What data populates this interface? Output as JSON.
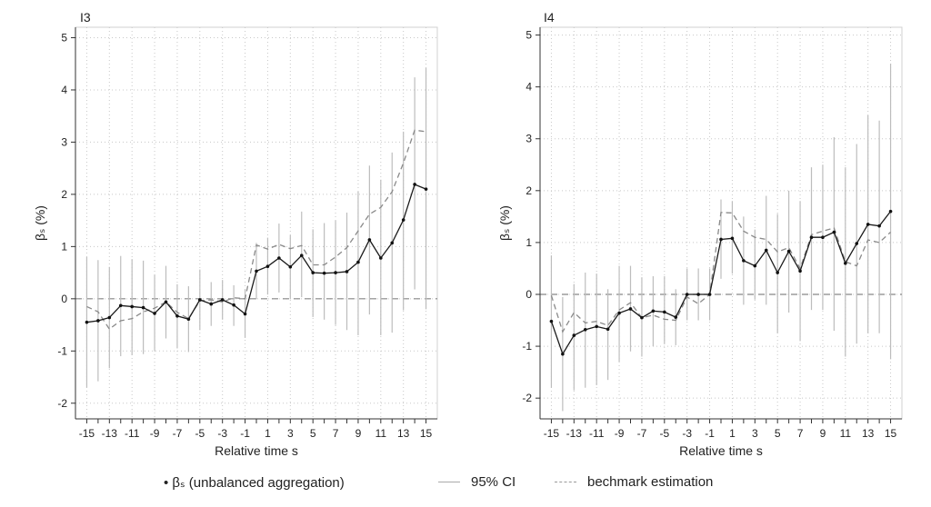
{
  "chart_data": [
    {
      "type": "line",
      "panel_label": "I3",
      "xlabel": "Relative time s",
      "ylabel": "βₛ (%)",
      "ylim": [
        -2.3,
        5.2
      ],
      "yticks": [
        -2,
        -1,
        0,
        1,
        2,
        3,
        4,
        5
      ],
      "xlim": [
        -16,
        16
      ],
      "xticks": [
        -15,
        -13,
        -11,
        -9,
        -7,
        -5,
        -3,
        -1,
        1,
        3,
        5,
        7,
        9,
        11,
        13,
        15
      ],
      "grid": true,
      "zero_line": true,
      "x": [
        -15,
        -14,
        -13,
        -12,
        -11,
        -10,
        -9,
        -8,
        -7,
        -6,
        -5,
        -4,
        -3,
        -2,
        -1,
        0,
        1,
        2,
        3,
        4,
        5,
        6,
        7,
        8,
        9,
        10,
        11,
        12,
        13,
        14,
        15
      ],
      "series": [
        {
          "name": "βₛ (unbalanced aggregation)",
          "values": [
            -0.45,
            -0.42,
            -0.36,
            -0.13,
            -0.15,
            -0.17,
            -0.28,
            -0.06,
            -0.33,
            -0.39,
            -0.02,
            -0.1,
            -0.02,
            -0.12,
            -0.29,
            0.53,
            0.62,
            0.78,
            0.61,
            0.83,
            0.5,
            0.49,
            0.5,
            0.52,
            0.7,
            1.13,
            0.78,
            1.07,
            1.51,
            2.19,
            2.1
          ]
        },
        {
          "name": "bechmark estimation",
          "values": [
            -0.15,
            -0.25,
            -0.58,
            -0.42,
            -0.38,
            -0.25,
            -0.18,
            -0.06,
            -0.26,
            -0.38,
            -0.04,
            -0.02,
            -0.06,
            0.02,
            0.0,
            1.03,
            0.95,
            1.04,
            0.96,
            1.02,
            0.65,
            0.65,
            0.8,
            0.98,
            1.3,
            1.62,
            1.75,
            2.05,
            2.6,
            3.23,
            3.2
          ]
        },
        {
          "name": "95% CI",
          "lower": [
            -1.7,
            -1.58,
            -1.33,
            -1.1,
            -1.08,
            -1.06,
            -1.0,
            -0.76,
            -0.95,
            -1.02,
            -0.6,
            -0.52,
            -0.4,
            -0.52,
            -0.75,
            0.0,
            0.08,
            0.12,
            0.0,
            0.03,
            -0.35,
            -0.4,
            -0.5,
            -0.6,
            -0.7,
            -0.3,
            -0.7,
            -0.65,
            -0.22,
            0.18,
            -0.2
          ],
          "upper": [
            0.8,
            0.74,
            0.61,
            0.82,
            0.76,
            0.73,
            0.46,
            0.63,
            0.28,
            0.24,
            0.56,
            0.32,
            0.36,
            0.26,
            0.18,
            1.07,
            1.17,
            1.44,
            1.22,
            1.67,
            1.33,
            1.45,
            1.5,
            1.65,
            2.05,
            2.55,
            2.28,
            2.8,
            3.2,
            4.24,
            4.42
          ]
        }
      ]
    },
    {
      "type": "line",
      "panel_label": "I4",
      "xlabel": "Relative time s",
      "ylabel": "βₛ (%)",
      "ylim": [
        -2.4,
        5.15
      ],
      "yticks": [
        -2,
        -1,
        0,
        1,
        2,
        3,
        4,
        5
      ],
      "xlim": [
        -16,
        16
      ],
      "xticks": [
        -15,
        -13,
        -11,
        -9,
        -7,
        -5,
        -3,
        -1,
        1,
        3,
        5,
        7,
        9,
        11,
        13,
        15
      ],
      "grid": true,
      "zero_line": true,
      "x": [
        -15,
        -14,
        -13,
        -12,
        -11,
        -10,
        -9,
        -8,
        -7,
        -6,
        -5,
        -4,
        -3,
        -2,
        -1,
        0,
        1,
        2,
        3,
        4,
        5,
        6,
        7,
        8,
        9,
        10,
        11,
        12,
        13,
        14,
        15
      ],
      "series": [
        {
          "name": "βₛ (unbalanced aggregation)",
          "values": [
            -0.52,
            -1.15,
            -0.79,
            -0.68,
            -0.62,
            -0.67,
            -0.36,
            -0.28,
            -0.45,
            -0.32,
            -0.34,
            -0.44,
            0.0,
            0.0,
            0.0,
            1.06,
            1.08,
            0.65,
            0.55,
            0.85,
            0.42,
            0.83,
            0.45,
            1.1,
            1.1,
            1.2,
            0.6,
            0.98,
            1.35,
            1.32,
            1.6
          ]
        },
        {
          "name": "bechmark estimation",
          "values": [
            -0.02,
            -0.72,
            -0.35,
            -0.55,
            -0.52,
            -0.6,
            -0.3,
            -0.16,
            -0.45,
            -0.4,
            -0.48,
            -0.5,
            -0.05,
            -0.18,
            0.0,
            1.58,
            1.57,
            1.22,
            1.1,
            1.06,
            0.82,
            0.9,
            0.5,
            1.15,
            1.22,
            1.28,
            0.63,
            0.55,
            1.05,
            1.0,
            1.2
          ]
        },
        {
          "name": "95% CI",
          "lower": [
            -1.8,
            -2.25,
            -1.85,
            -1.8,
            -1.75,
            -1.65,
            -1.3,
            -1.1,
            -1.2,
            -1.0,
            -0.95,
            -0.98,
            -0.5,
            -0.5,
            -0.5,
            0.3,
            0.4,
            -0.2,
            -0.1,
            -0.2,
            -0.75,
            -0.35,
            -0.9,
            -0.3,
            -0.3,
            -0.7,
            -1.2,
            -0.95,
            -0.75,
            -0.75,
            -1.25
          ]
        },
        {
          "name": "95% CI upper",
          "upper": [
            0.75,
            -0.05,
            0.2,
            0.42,
            0.4,
            0.1,
            0.55,
            0.55,
            0.33,
            0.35,
            0.35,
            0.1,
            0.5,
            0.5,
            0.5,
            1.83,
            1.8,
            1.5,
            1.25,
            1.9,
            1.55,
            2.0,
            1.8,
            2.45,
            2.5,
            3.03,
            2.45,
            2.9,
            3.45,
            3.35,
            4.45
          ]
        }
      ]
    }
  ],
  "legend": {
    "items": [
      "• βₛ (unbalanced aggregation)",
      "95% CI",
      "bechmark estimation"
    ]
  }
}
